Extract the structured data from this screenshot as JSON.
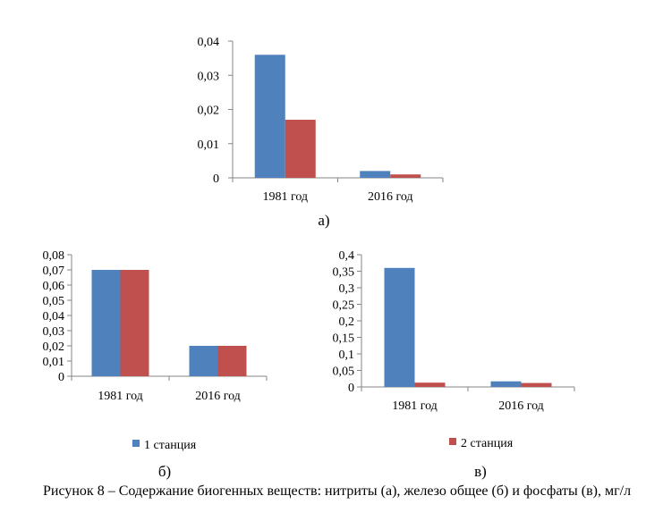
{
  "colors": {
    "series1": "#4F81BD",
    "series2": "#C0504D",
    "axis": "#868686"
  },
  "legend": {
    "series1": "1 станция",
    "series2": "2 станция"
  },
  "caption": "Рисунок 8 – Содержание биогенных веществ: нитриты (а), железо общее (б) и фосфаты (в), мг/л",
  "chart_data": [
    {
      "id": "a",
      "type": "bar",
      "sublabel": "а)",
      "categories": [
        "1981 год",
        "2016 год"
      ],
      "series": [
        {
          "name": "1 станция",
          "values": [
            0.036,
            0.002
          ]
        },
        {
          "name": "2 станция",
          "values": [
            0.017,
            0.001
          ]
        }
      ],
      "ylim": [
        0,
        0.04
      ],
      "yticks": [
        "0",
        "0,01",
        "0,02",
        "0,03",
        "0,04"
      ]
    },
    {
      "id": "b",
      "type": "bar",
      "sublabel": "б)",
      "categories": [
        "1981 год",
        "2016 год"
      ],
      "series": [
        {
          "name": "1 станция",
          "values": [
            0.07,
            0.02
          ]
        },
        {
          "name": "2 станция",
          "values": [
            0.07,
            0.02
          ]
        }
      ],
      "ylim": [
        0,
        0.08
      ],
      "yticks": [
        "0",
        "0,01",
        "0,02",
        "0,03",
        "0,04",
        "0,05",
        "0,06",
        "0,07",
        "0,08"
      ]
    },
    {
      "id": "c",
      "type": "bar",
      "sublabel": "в)",
      "categories": [
        "1981 год",
        "2016 год"
      ],
      "series": [
        {
          "name": "1 станция",
          "values": [
            0.36,
            0.017
          ]
        },
        {
          "name": "2 станция",
          "values": [
            0.013,
            0.012
          ]
        }
      ],
      "ylim": [
        0,
        0.4
      ],
      "yticks": [
        "0",
        "0,05",
        "0,1",
        "0,15",
        "0,2",
        "0,25",
        "0,3",
        "0,35",
        "0,4"
      ]
    }
  ]
}
